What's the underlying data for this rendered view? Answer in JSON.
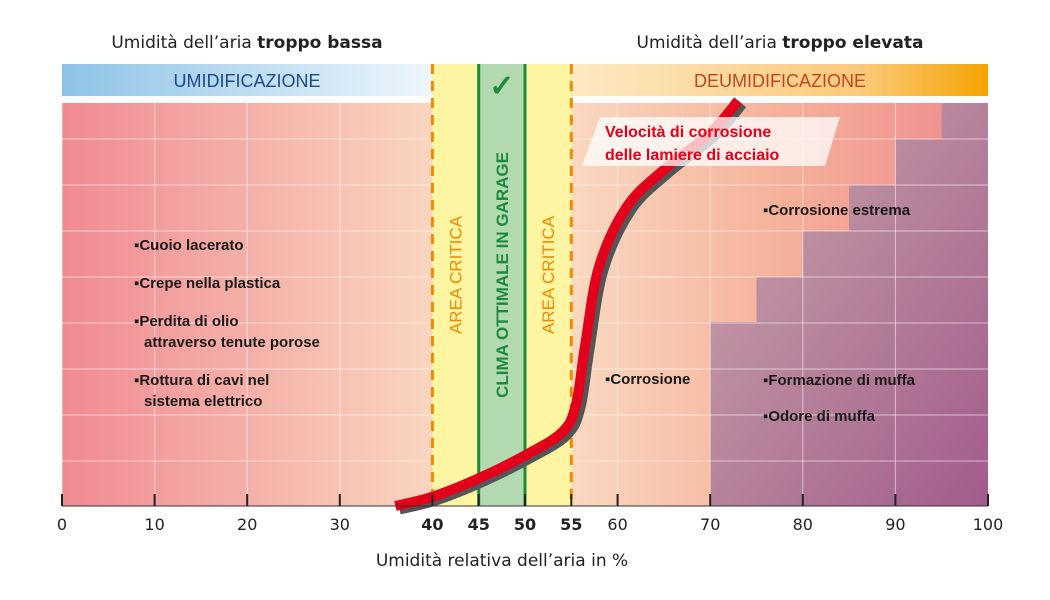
{
  "headers": {
    "low_prefix": "Umidità dell’aria ",
    "low_bold": "troppo bassa",
    "high_prefix": "Umidità dell’aria ",
    "high_bold": "troppo elevata"
  },
  "bands": {
    "humidify": "UMIDIFICAZIONE",
    "dehumidify": "DEUMIDIFICAZIONE",
    "check_icon": "checkmark-icon",
    "critical_left": "AREA CRITICA",
    "optimal": "CLIMA OTTIMALE IN GARAGE",
    "critical_right": "AREA CRITICA"
  },
  "curve_label": {
    "line1": "Velocità di corrosione",
    "line2": "delle lamiere di acciaio"
  },
  "low_effects": [
    [
      "Cuoio lacerato"
    ],
    [
      "Crepe nella plastica"
    ],
    [
      "Perdita di olio",
      "attraverso tenute porose"
    ],
    [
      "Rottura di cavi nel",
      "sistema elettrico"
    ]
  ],
  "high_effects": {
    "corrosion": "Corrosione",
    "extreme": "Corrosione estrema",
    "mold": "Formazione di muffa",
    "mold_smell": "Odore di muffa"
  },
  "colors": {
    "critical": "#f08a00",
    "optimal": "#1e8a3c",
    "curve": "#e2001a",
    "humidify_text": "#1c4a8a",
    "dehumidify_text": "#c0461c"
  },
  "chart_data": {
    "type": "line",
    "xlabel": "Umidità relativa dell’aria in %",
    "xlim": [
      0,
      100
    ],
    "xticks": [
      "0",
      "10",
      "20",
      "30",
      "40",
      "45",
      "50",
      "55",
      "60",
      "70",
      "80",
      "90",
      "100"
    ],
    "critical_ranges": [
      [
        40,
        45
      ],
      [
        50,
        55
      ]
    ],
    "optimal_range": [
      45,
      50
    ],
    "mold_staircase_start": [
      [
        70,
        3
      ],
      [
        75,
        4
      ],
      [
        80,
        5
      ],
      [
        85,
        6
      ],
      [
        90,
        7
      ],
      [
        95,
        8
      ]
    ],
    "corrosion_curve": {
      "x": [
        36,
        40,
        45,
        50,
        54,
        55.5,
        56.5,
        58,
        61,
        65,
        70,
        73
      ],
      "y": [
        0,
        0.2,
        0.6,
        1.1,
        1.6,
        2.2,
        3.5,
        5.2,
        6.5,
        7.3,
        8.1,
        8.8
      ]
    }
  }
}
